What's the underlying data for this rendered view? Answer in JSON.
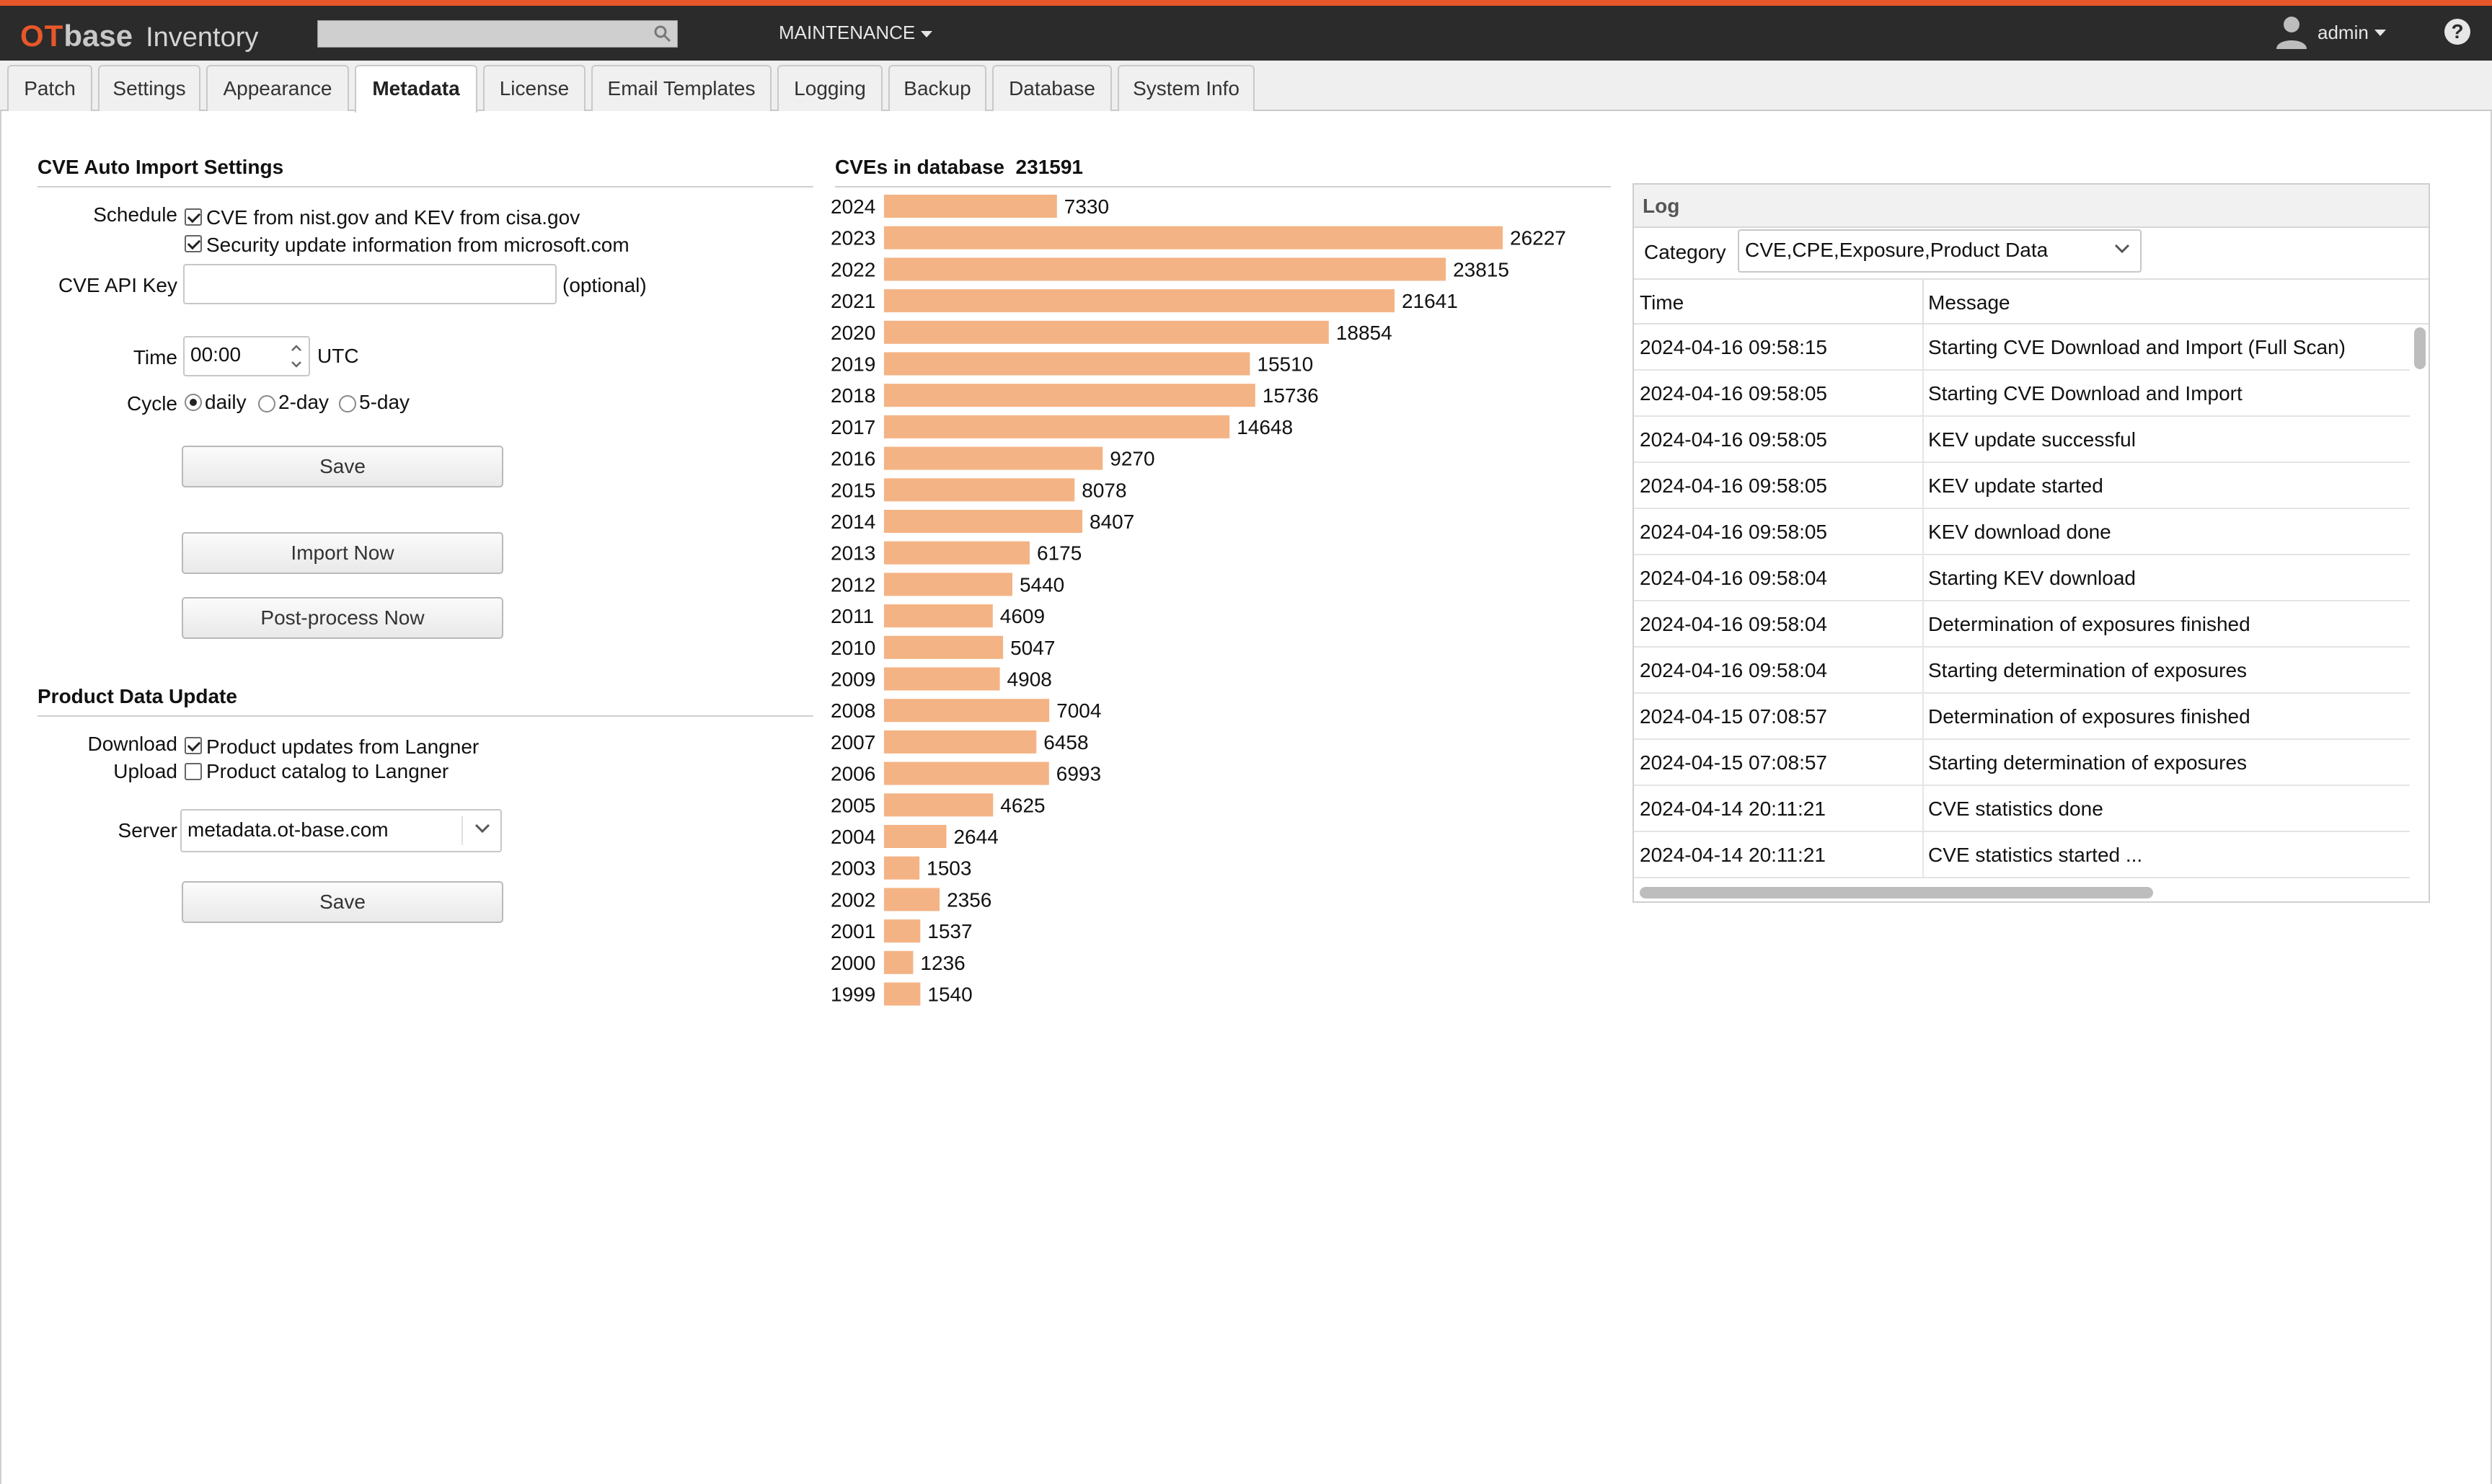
{
  "header": {
    "logo_ot": "OT",
    "logo_base": "base",
    "logo_product": "Inventory",
    "search_placeholder": "",
    "menu_label": "MAINTENANCE",
    "user_label": "admin",
    "help_label": "?"
  },
  "tabs": [
    {
      "label": "Patch",
      "active": false
    },
    {
      "label": "Settings",
      "active": false
    },
    {
      "label": "Appearance",
      "active": false
    },
    {
      "label": "Metadata",
      "active": true
    },
    {
      "label": "License",
      "active": false
    },
    {
      "label": "Email Templates",
      "active": false
    },
    {
      "label": "Logging",
      "active": false
    },
    {
      "label": "Backup",
      "active": false
    },
    {
      "label": "Database",
      "active": false
    },
    {
      "label": "System Info",
      "active": false
    }
  ],
  "cve_settings": {
    "title": "CVE Auto Import Settings",
    "schedule_label": "Schedule",
    "schedule_options": [
      {
        "label": "CVE from nist.gov and KEV from cisa.gov",
        "checked": true
      },
      {
        "label": "Security update information from microsoft.com",
        "checked": true
      }
    ],
    "api_key_label": "CVE API Key",
    "api_key_value": "",
    "api_key_hint": "(optional)",
    "time_label": "Time",
    "time_value": "00:00",
    "time_zone": "UTC",
    "cycle_label": "Cycle",
    "cycle_options": [
      {
        "label": "daily",
        "checked": true
      },
      {
        "label": "2-day",
        "checked": false
      },
      {
        "label": "5-day",
        "checked": false
      }
    ],
    "save_label": "Save",
    "import_label": "Import Now",
    "postprocess_label": "Post-process Now"
  },
  "product_update": {
    "title": "Product Data Update",
    "download_label": "Download",
    "download_option": {
      "label": "Product updates from Langner",
      "checked": true
    },
    "upload_label": "Upload",
    "upload_option": {
      "label": "Product catalog to Langner",
      "checked": false
    },
    "server_label": "Server",
    "server_value": "metadata.ot-base.com",
    "save_label": "Save"
  },
  "chart_title_prefix": "CVEs in database",
  "chart_total": "231591",
  "chart_data": {
    "type": "bar",
    "orientation": "horizontal",
    "title": "CVEs in database 231591",
    "bar_color": "#f4b384",
    "categories": [
      "2024",
      "2023",
      "2022",
      "2021",
      "2020",
      "2019",
      "2018",
      "2017",
      "2016",
      "2015",
      "2014",
      "2013",
      "2012",
      "2011",
      "2010",
      "2009",
      "2008",
      "2007",
      "2006",
      "2005",
      "2004",
      "2003",
      "2002",
      "2001",
      "2000",
      "1999"
    ],
    "values": [
      7330,
      26227,
      23815,
      21641,
      18854,
      15510,
      15736,
      14648,
      9270,
      8078,
      8407,
      6175,
      5440,
      4609,
      5047,
      4908,
      7004,
      6458,
      6993,
      4625,
      2644,
      1503,
      2356,
      1537,
      1236,
      1540
    ],
    "grid": false
  },
  "log": {
    "title": "Log",
    "category_label": "Category",
    "category_value": "CVE,CPE,Exposure,Product Data",
    "col_time": "Time",
    "col_message": "Message",
    "rows": [
      {
        "time": "2024-04-16 09:58:15",
        "message": "Starting CVE Download and Import (Full Scan)"
      },
      {
        "time": "2024-04-16 09:58:05",
        "message": "Starting CVE Download and Import"
      },
      {
        "time": "2024-04-16 09:58:05",
        "message": "KEV update successful"
      },
      {
        "time": "2024-04-16 09:58:05",
        "message": "KEV update started"
      },
      {
        "time": "2024-04-16 09:58:05",
        "message": "KEV download done"
      },
      {
        "time": "2024-04-16 09:58:04",
        "message": "Starting KEV download"
      },
      {
        "time": "2024-04-16 09:58:04",
        "message": "Determination of exposures finished"
      },
      {
        "time": "2024-04-16 09:58:04",
        "message": "Starting determination of exposures"
      },
      {
        "time": "2024-04-15 07:08:57",
        "message": "Determination of exposures finished"
      },
      {
        "time": "2024-04-15 07:08:57",
        "message": "Starting determination of exposures"
      },
      {
        "time": "2024-04-14 20:11:21",
        "message": "CVE statistics done"
      },
      {
        "time": "2024-04-14 20:11:21",
        "message": "CVE statistics started ..."
      }
    ]
  }
}
